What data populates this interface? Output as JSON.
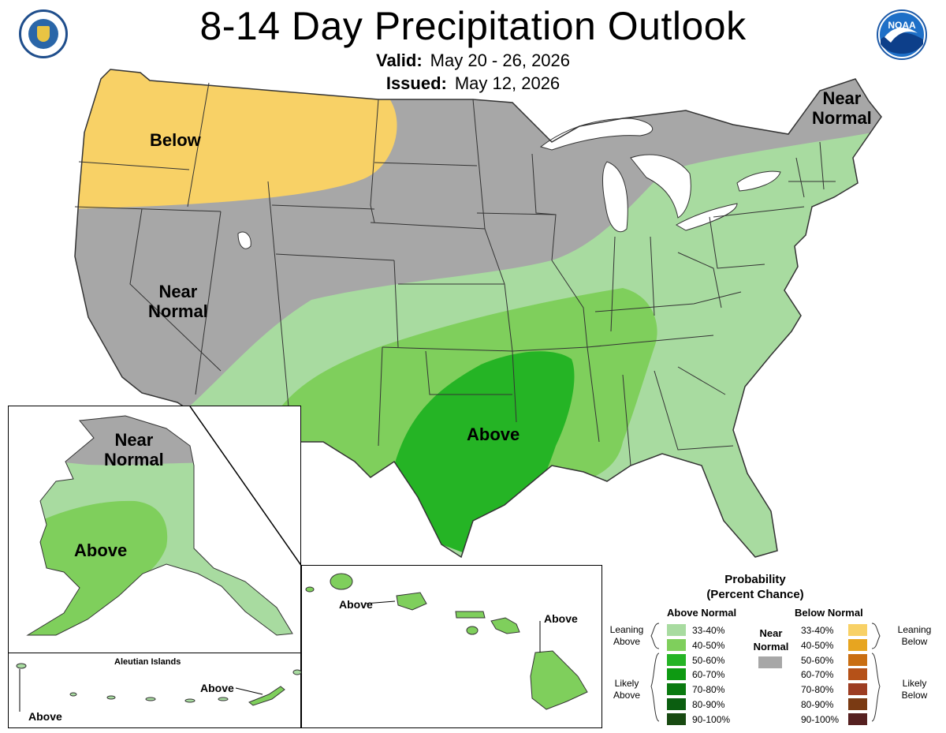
{
  "header": {
    "title": "8-14 Day Precipitation Outlook",
    "valid_label": "Valid:",
    "valid_value": "May 20 - 26, 2026",
    "issued_label": "Issued:",
    "issued_value": "May 12, 2026",
    "noaa_logo_text": "NOAA"
  },
  "conus_labels": {
    "below": "Below",
    "near_normal_west_1": "Near",
    "near_normal_west_2": "Normal",
    "near_normal_ne_1": "Near",
    "near_normal_ne_2": "Normal",
    "above_south": "Above"
  },
  "alaska": {
    "near_1": "Near",
    "near_2": "Normal",
    "above": "Above"
  },
  "aleutians": {
    "title": "Aleutian Islands",
    "above_east": "Above",
    "above_west": "Above"
  },
  "hawaii": {
    "above_west": "Above",
    "above_east": "Above"
  },
  "legend": {
    "title_1": "Probability",
    "title_2": "(Percent Chance)",
    "above_header": "Above Normal",
    "below_header": "Below Normal",
    "near_1": "Near",
    "near_2": "Normal",
    "leaning_above_1": "Leaning",
    "leaning_above_2": "Above",
    "likely_above_1": "Likely",
    "likely_above_2": "Above",
    "leaning_below_1": "Leaning",
    "leaning_below_2": "Below",
    "likely_below_1": "Likely",
    "likely_below_2": "Below",
    "ranges": [
      "33-40%",
      "40-50%",
      "50-60%",
      "60-70%",
      "70-80%",
      "80-90%",
      "90-100%"
    ],
    "above_colors": [
      "#a8dba0",
      "#7fcf5c",
      "#25b425",
      "#0e9a12",
      "#0a7a10",
      "#0b5e10",
      "#184a12"
    ],
    "below_colors": [
      "#f8d166",
      "#e7a520",
      "#c96e12",
      "#b55118",
      "#9d3d22",
      "#7a3a13",
      "#552020"
    ],
    "near_color": "#a7a7a7"
  },
  "colors": {
    "near_normal_gray": "#a7a7a7",
    "below_leaning": "#f8d166",
    "above_leaning": "#a8dba0",
    "above_40_50": "#7fcf5c",
    "above_50_60": "#25b425"
  }
}
